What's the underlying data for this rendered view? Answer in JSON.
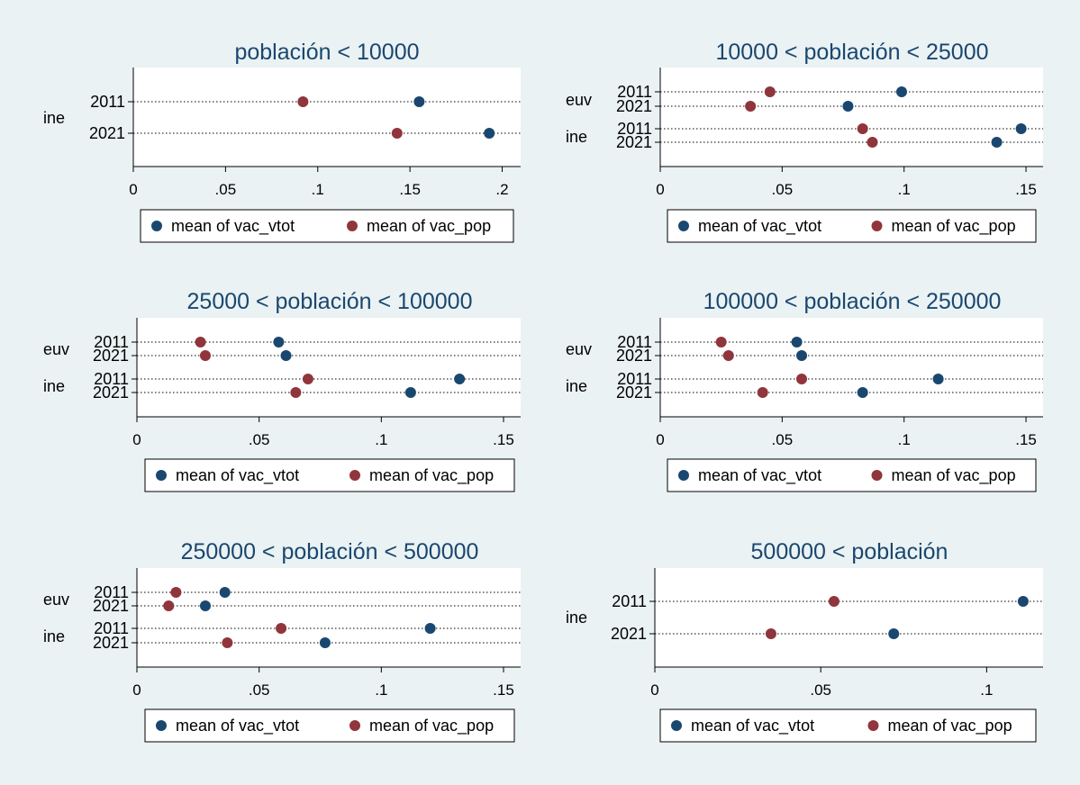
{
  "colors": {
    "background": "#eaf2f3",
    "plot_bg": "#ffffff",
    "title": "#1a476f",
    "vac_vtot": "#1a476f",
    "vac_pop": "#90353b"
  },
  "legend_labels": [
    "mean of vac_vtot",
    "mean of vac_pop"
  ],
  "chart_data": [
    {
      "type": "dot",
      "title": "población < 10000",
      "groups": [
        {
          "label": "ine",
          "rows": [
            {
              "label": "2011",
              "vac_vtot": 0.155,
              "vac_pop": 0.092
            },
            {
              "label": "2021",
              "vac_vtot": 0.193,
              "vac_pop": 0.143
            }
          ]
        }
      ],
      "xticks": [
        "0",
        ".05",
        ".1",
        ".15",
        ".2"
      ],
      "xtick_values": [
        0,
        0.05,
        0.1,
        0.15,
        0.2
      ],
      "xlim": [
        0,
        0.21
      ],
      "series": [
        {
          "name": "mean of vac_vtot"
        },
        {
          "name": "mean of vac_pop"
        }
      ],
      "legend": "bottom"
    },
    {
      "type": "dot",
      "title": "10000 < población < 25000",
      "groups": [
        {
          "label": "euv",
          "rows": [
            {
              "label": "2011",
              "vac_vtot": 0.099,
              "vac_pop": 0.045
            },
            {
              "label": "2021",
              "vac_vtot": 0.077,
              "vac_pop": 0.037
            }
          ]
        },
        {
          "label": "ine",
          "rows": [
            {
              "label": "2011",
              "vac_vtot": 0.148,
              "vac_pop": 0.083
            },
            {
              "label": "2021",
              "vac_vtot": 0.138,
              "vac_pop": 0.087
            }
          ]
        }
      ],
      "xticks": [
        "0",
        ".05",
        ".1",
        ".15"
      ],
      "xtick_values": [
        0,
        0.05,
        0.1,
        0.15
      ],
      "xlim": [
        0,
        0.157
      ],
      "series": [
        {
          "name": "mean of vac_vtot"
        },
        {
          "name": "mean of vac_pop"
        }
      ],
      "legend": "bottom"
    },
    {
      "type": "dot",
      "title": "25000 < población < 100000",
      "groups": [
        {
          "label": "euv",
          "rows": [
            {
              "label": "2011",
              "vac_vtot": 0.058,
              "vac_pop": 0.026
            },
            {
              "label": "2021",
              "vac_vtot": 0.061,
              "vac_pop": 0.028
            }
          ]
        },
        {
          "label": "ine",
          "rows": [
            {
              "label": "2011",
              "vac_vtot": 0.132,
              "vac_pop": 0.07
            },
            {
              "label": "2021",
              "vac_vtot": 0.112,
              "vac_pop": 0.065
            }
          ]
        }
      ],
      "xticks": [
        "0",
        ".05",
        ".1",
        ".15"
      ],
      "xtick_values": [
        0,
        0.05,
        0.1,
        0.15
      ],
      "xlim": [
        0,
        0.157
      ],
      "series": [
        {
          "name": "mean of vac_vtot"
        },
        {
          "name": "mean of vac_pop"
        }
      ],
      "legend": "bottom"
    },
    {
      "type": "dot",
      "title": "100000 < población < 250000",
      "groups": [
        {
          "label": "euv",
          "rows": [
            {
              "label": "2011",
              "vac_vtot": 0.056,
              "vac_pop": 0.025
            },
            {
              "label": "2021",
              "vac_vtot": 0.058,
              "vac_pop": 0.028
            }
          ]
        },
        {
          "label": "ine",
          "rows": [
            {
              "label": "2011",
              "vac_vtot": 0.114,
              "vac_pop": 0.058
            },
            {
              "label": "2021",
              "vac_vtot": 0.083,
              "vac_pop": 0.042
            }
          ]
        }
      ],
      "xticks": [
        "0",
        ".05",
        ".1",
        ".15"
      ],
      "xtick_values": [
        0,
        0.05,
        0.1,
        0.15
      ],
      "xlim": [
        0,
        0.157
      ],
      "series": [
        {
          "name": "mean of vac_vtot"
        },
        {
          "name": "mean of vac_pop"
        }
      ],
      "legend": "bottom"
    },
    {
      "type": "dot",
      "title": "250000 < población < 500000",
      "groups": [
        {
          "label": "euv",
          "rows": [
            {
              "label": "2011",
              "vac_vtot": 0.036,
              "vac_pop": 0.016
            },
            {
              "label": "2021",
              "vac_vtot": 0.028,
              "vac_pop": 0.013
            }
          ]
        },
        {
          "label": "ine",
          "rows": [
            {
              "label": "2011",
              "vac_vtot": 0.12,
              "vac_pop": 0.059
            },
            {
              "label": "2021",
              "vac_vtot": 0.077,
              "vac_pop": 0.037
            }
          ]
        }
      ],
      "xticks": [
        "0",
        ".05",
        ".1",
        ".15"
      ],
      "xtick_values": [
        0,
        0.05,
        0.1,
        0.15
      ],
      "xlim": [
        0,
        0.157
      ],
      "series": [
        {
          "name": "mean of vac_vtot"
        },
        {
          "name": "mean of vac_pop"
        }
      ],
      "legend": "bottom"
    },
    {
      "type": "dot",
      "title": "500000 < población",
      "groups": [
        {
          "label": "ine",
          "rows": [
            {
              "label": "2011",
              "vac_vtot": 0.111,
              "vac_pop": 0.054
            },
            {
              "label": "2021",
              "vac_vtot": 0.072,
              "vac_pop": 0.035
            }
          ]
        }
      ],
      "xticks": [
        "0",
        ".05",
        ".1"
      ],
      "xtick_values": [
        0,
        0.05,
        0.1
      ],
      "xlim": [
        0,
        0.117
      ],
      "series": [
        {
          "name": "mean of vac_vtot"
        },
        {
          "name": "mean of vac_pop"
        }
      ],
      "legend": "bottom"
    }
  ]
}
